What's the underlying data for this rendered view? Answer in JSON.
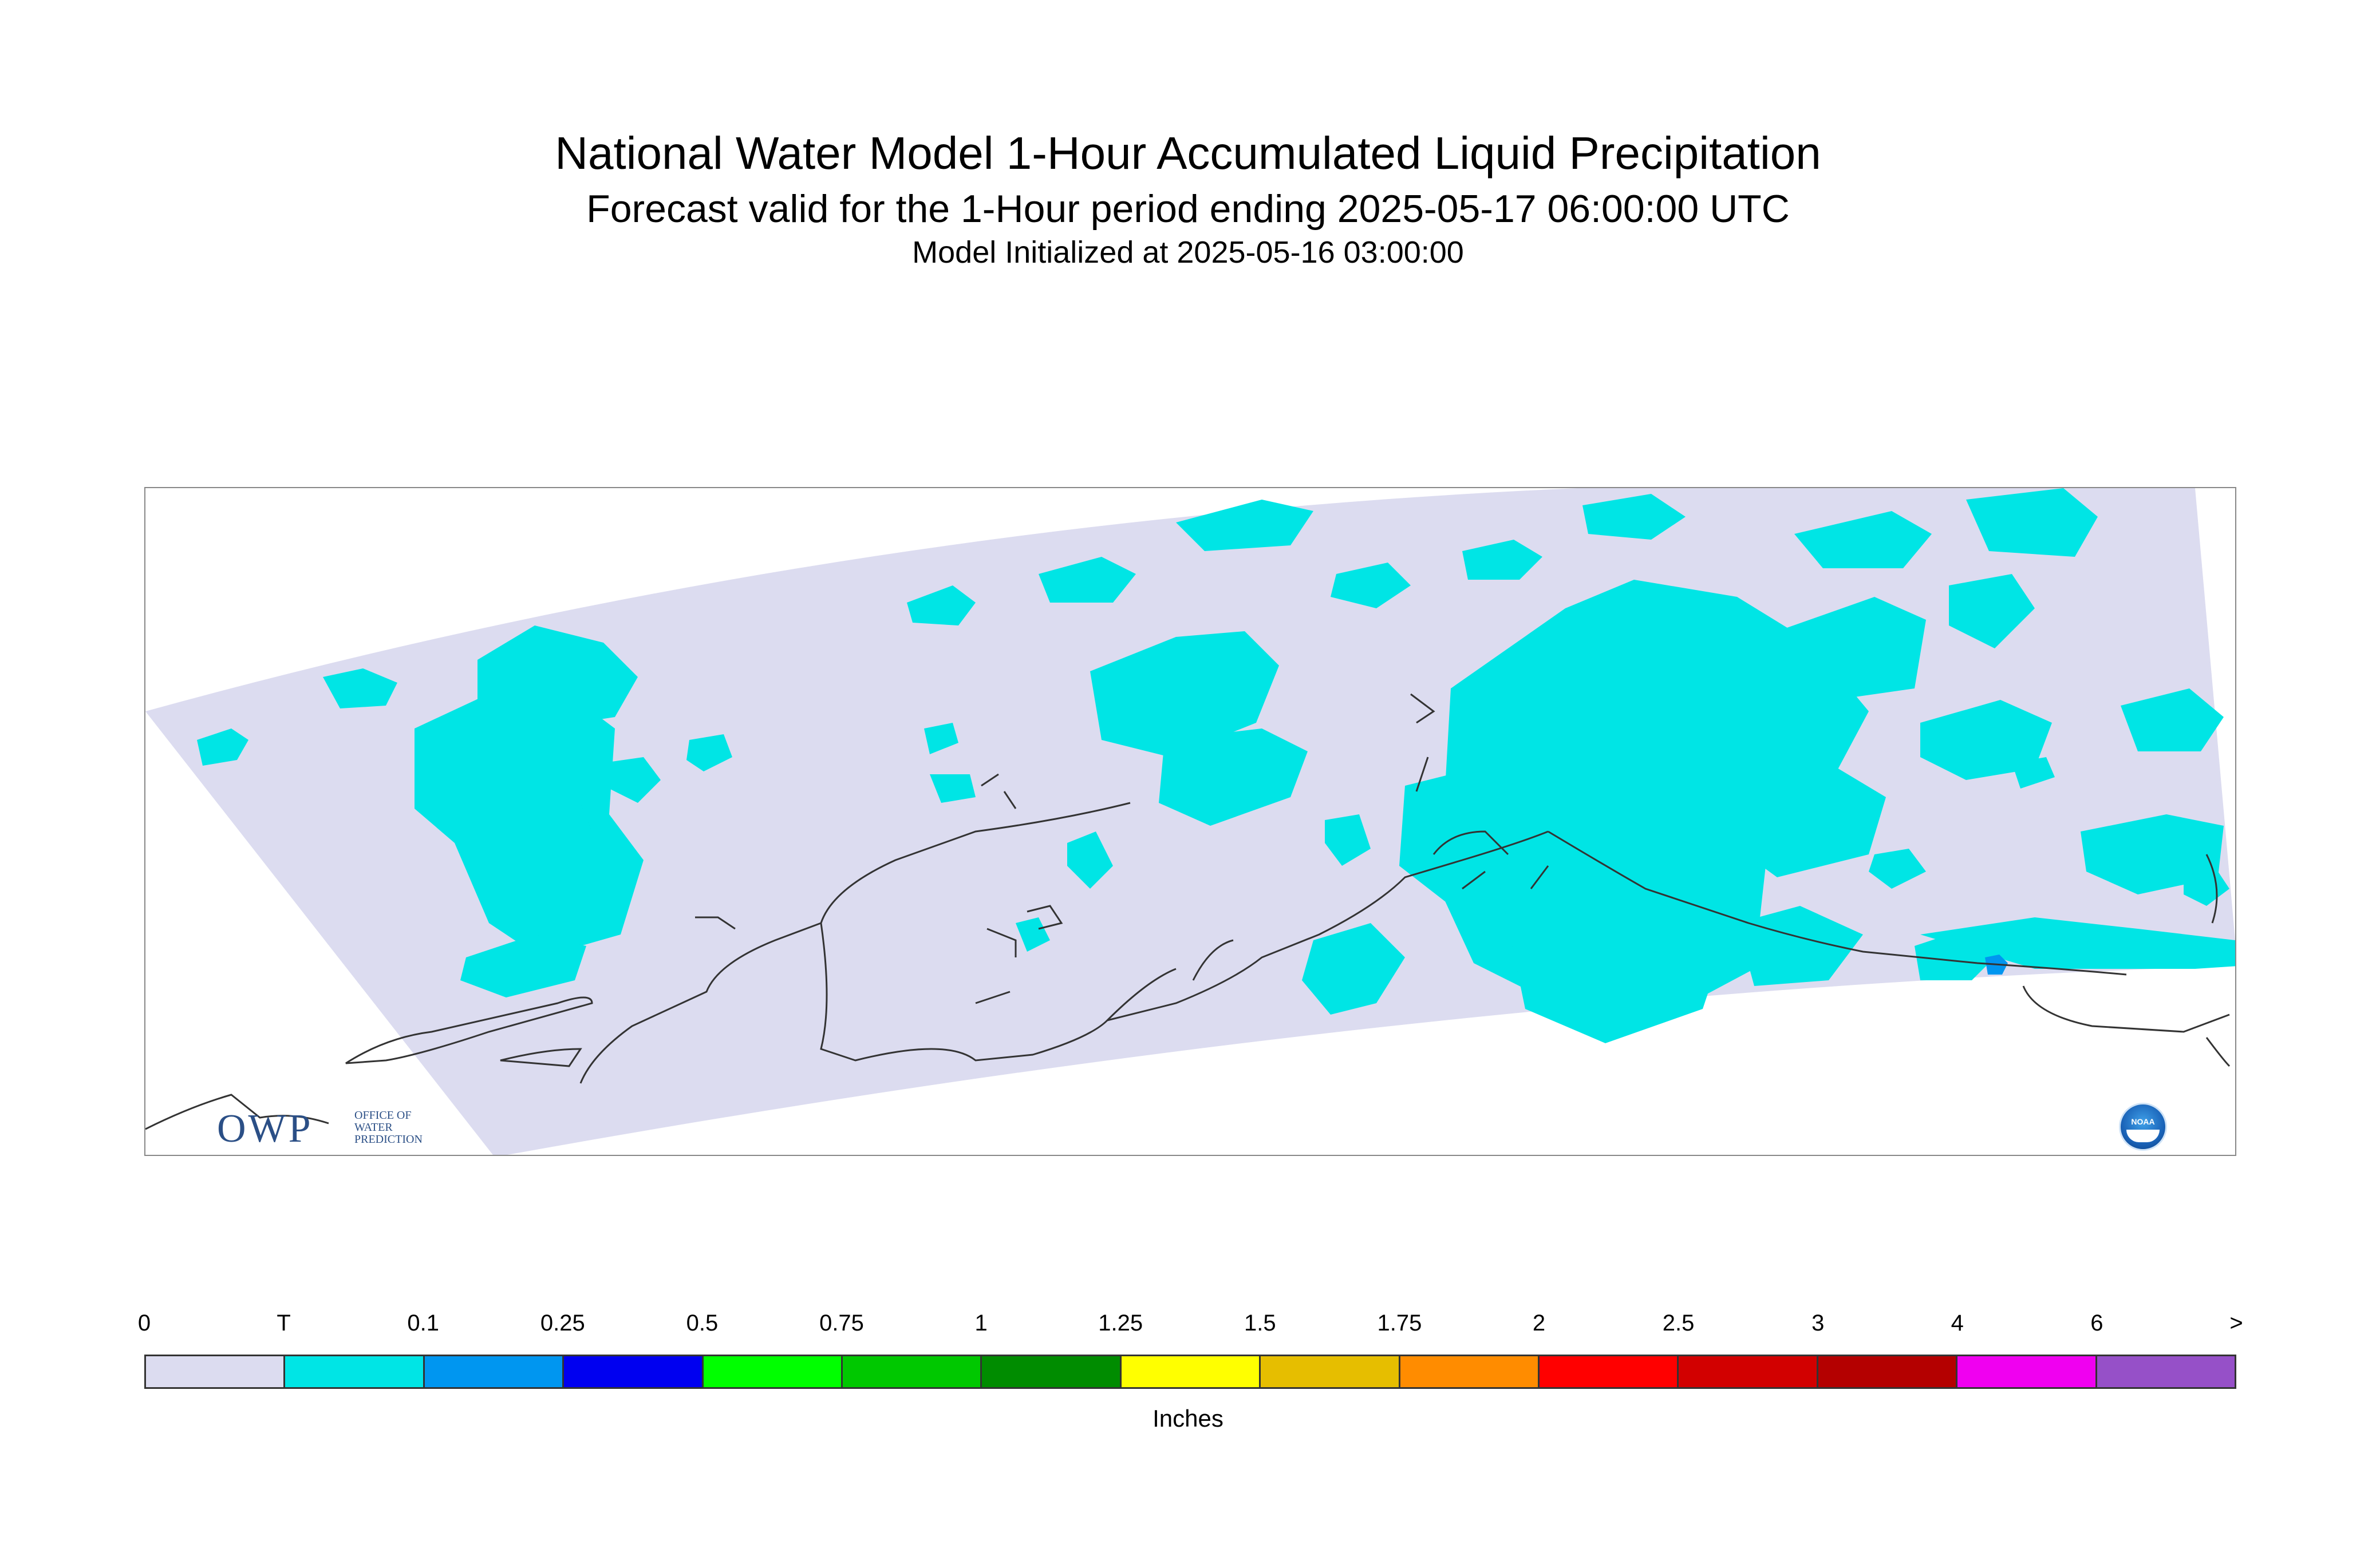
{
  "title": {
    "line1": "National Water Model 1-Hour Accumulated Liquid Precipitation",
    "line2": "Forecast valid for the 1-Hour period ending 2025-05-17 06:00:00 UTC",
    "line3": "Model Initialized at 2025-05-16 03:00:00"
  },
  "logos": {
    "owp_text": "OWP",
    "owp_subtext": "OFFICE OF WATER PREDICTION",
    "noaa_text": "NOAA"
  },
  "legend": {
    "tick_labels": [
      "0",
      "T",
      "0.1",
      "0.25",
      "0.5",
      "0.75",
      "1",
      "1.25",
      "1.5",
      "1.75",
      "2",
      "2.5",
      "3",
      "4",
      "6",
      ">"
    ],
    "colors": [
      "#dcdcf0",
      "#00e5e5",
      "#0096f0",
      "#0000f0",
      "#00ff00",
      "#00c800",
      "#008c00",
      "#ffff00",
      "#e6be00",
      "#ff8c00",
      "#ff0000",
      "#d20000",
      "#b40000",
      "#f000f0",
      "#9650c8"
    ],
    "units": "Inches"
  },
  "map": {
    "domain_color": "#dcdcf0",
    "precip_color": "#00e5e5",
    "heavier_color": "#0096f0",
    "coastline_color": "#333333"
  }
}
